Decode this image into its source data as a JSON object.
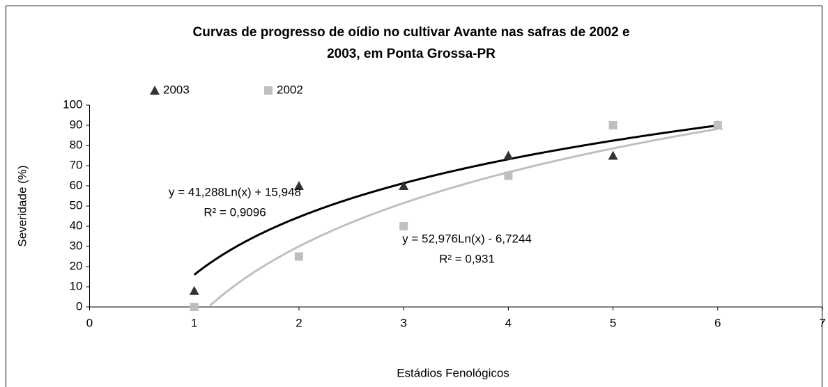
{
  "chart_data": {
    "type": "scatter",
    "title": [
      "Curvas de progresso de oídio no cultivar Avante nas safras de 2002 e",
      "2003, em Ponta Grossa-PR"
    ],
    "x_label": "Estádios Fenológicos",
    "y_label": "Severidade (%)",
    "xlim": [
      0,
      7
    ],
    "xticks": [
      0,
      1,
      2,
      3,
      4,
      5,
      6,
      7
    ],
    "ylim": [
      0,
      100
    ],
    "yticks": [
      0,
      10,
      20,
      30,
      40,
      50,
      60,
      70,
      80,
      90,
      100
    ],
    "series": [
      {
        "name": "2003",
        "color": "#333333",
        "marker": "triangle",
        "x": [
          1,
          2,
          3,
          4,
          5,
          6
        ],
        "values": [
          8,
          60,
          60,
          75,
          75,
          90
        ],
        "trendline": {
          "type": "log",
          "a": 41.288,
          "b": 15.948,
          "color": "#000000",
          "label": "y = 41,288Ln(x) + 15,948",
          "r2_label": "R² = 0,9096"
        }
      },
      {
        "name": "2002",
        "color": "#bfbfbf",
        "marker": "square",
        "x": [
          1,
          2,
          3,
          4,
          5,
          6
        ],
        "values": [
          0,
          25,
          40,
          65,
          90,
          90
        ],
        "trendline": {
          "type": "log",
          "a": 52.976,
          "b": -6.7244,
          "color": "#c0c0c0",
          "label": "y = 52,976Ln(x) - 6,7244",
          "r2_label": "R² = 0,931"
        }
      }
    ]
  }
}
